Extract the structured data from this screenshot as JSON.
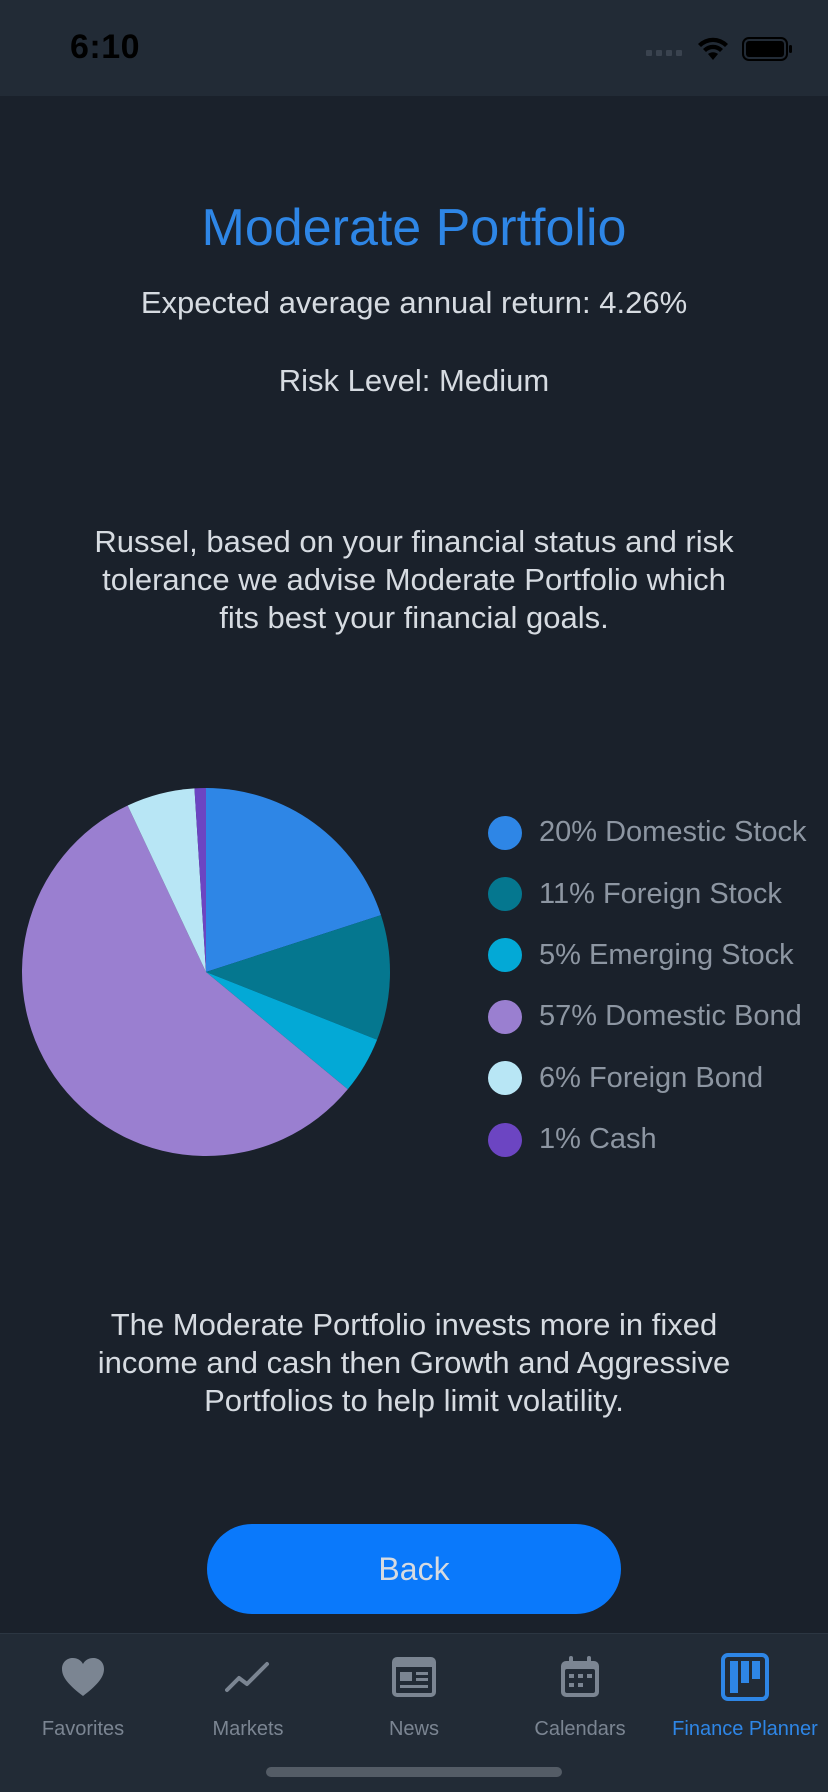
{
  "status_bar": {
    "time": "6:10",
    "icons": [
      "cellular-signal-icon",
      "wifi-icon",
      "battery-icon"
    ]
  },
  "portfolio": {
    "title": "Moderate Portfolio",
    "expected_return": "Expected average annual return: 4.26%",
    "risk_level": "Risk Level: Medium",
    "advice": "Russel, based on your financial status and risk tolerance we advise Moderate Portfolio which fits best your financial goals.",
    "description": "The Moderate Portfolio invests more in fixed income and cash then Growth and Aggressive Portfolios to help limit volatility."
  },
  "chart_data": {
    "type": "pie",
    "categories": [
      "Domestic Stock",
      "Foreign Stock",
      "Emerging Stock",
      "Domestic Bond",
      "Foreign Bond",
      "Cash"
    ],
    "values": [
      20,
      11,
      5,
      57,
      6,
      1
    ],
    "colors": [
      "#2e86e6",
      "#05778f",
      "#03a9d6",
      "#9a7fd0",
      "#b8e6f5",
      "#6c45c2"
    ],
    "legend_labels": [
      "20% Domestic Stock",
      "11% Foreign Stock",
      "5% Emerging Stock",
      "57% Domestic Bond",
      "6% Foreign Bond",
      "1% Cash"
    ],
    "legend_position": "right"
  },
  "actions": {
    "back_label": "Back"
  },
  "tab_bar": {
    "tabs": [
      {
        "label": "Favorites",
        "icon": "heart-icon",
        "active": false
      },
      {
        "label": "Markets",
        "icon": "chart-line-icon",
        "active": false
      },
      {
        "label": "News",
        "icon": "newspaper-icon",
        "active": false
      },
      {
        "label": "Calendars",
        "icon": "calendar-icon",
        "active": false
      },
      {
        "label": "Finance Planner",
        "icon": "board-icon",
        "active": true
      }
    ],
    "active_color": "#2e86e6",
    "inactive_color": "#7b8592"
  }
}
